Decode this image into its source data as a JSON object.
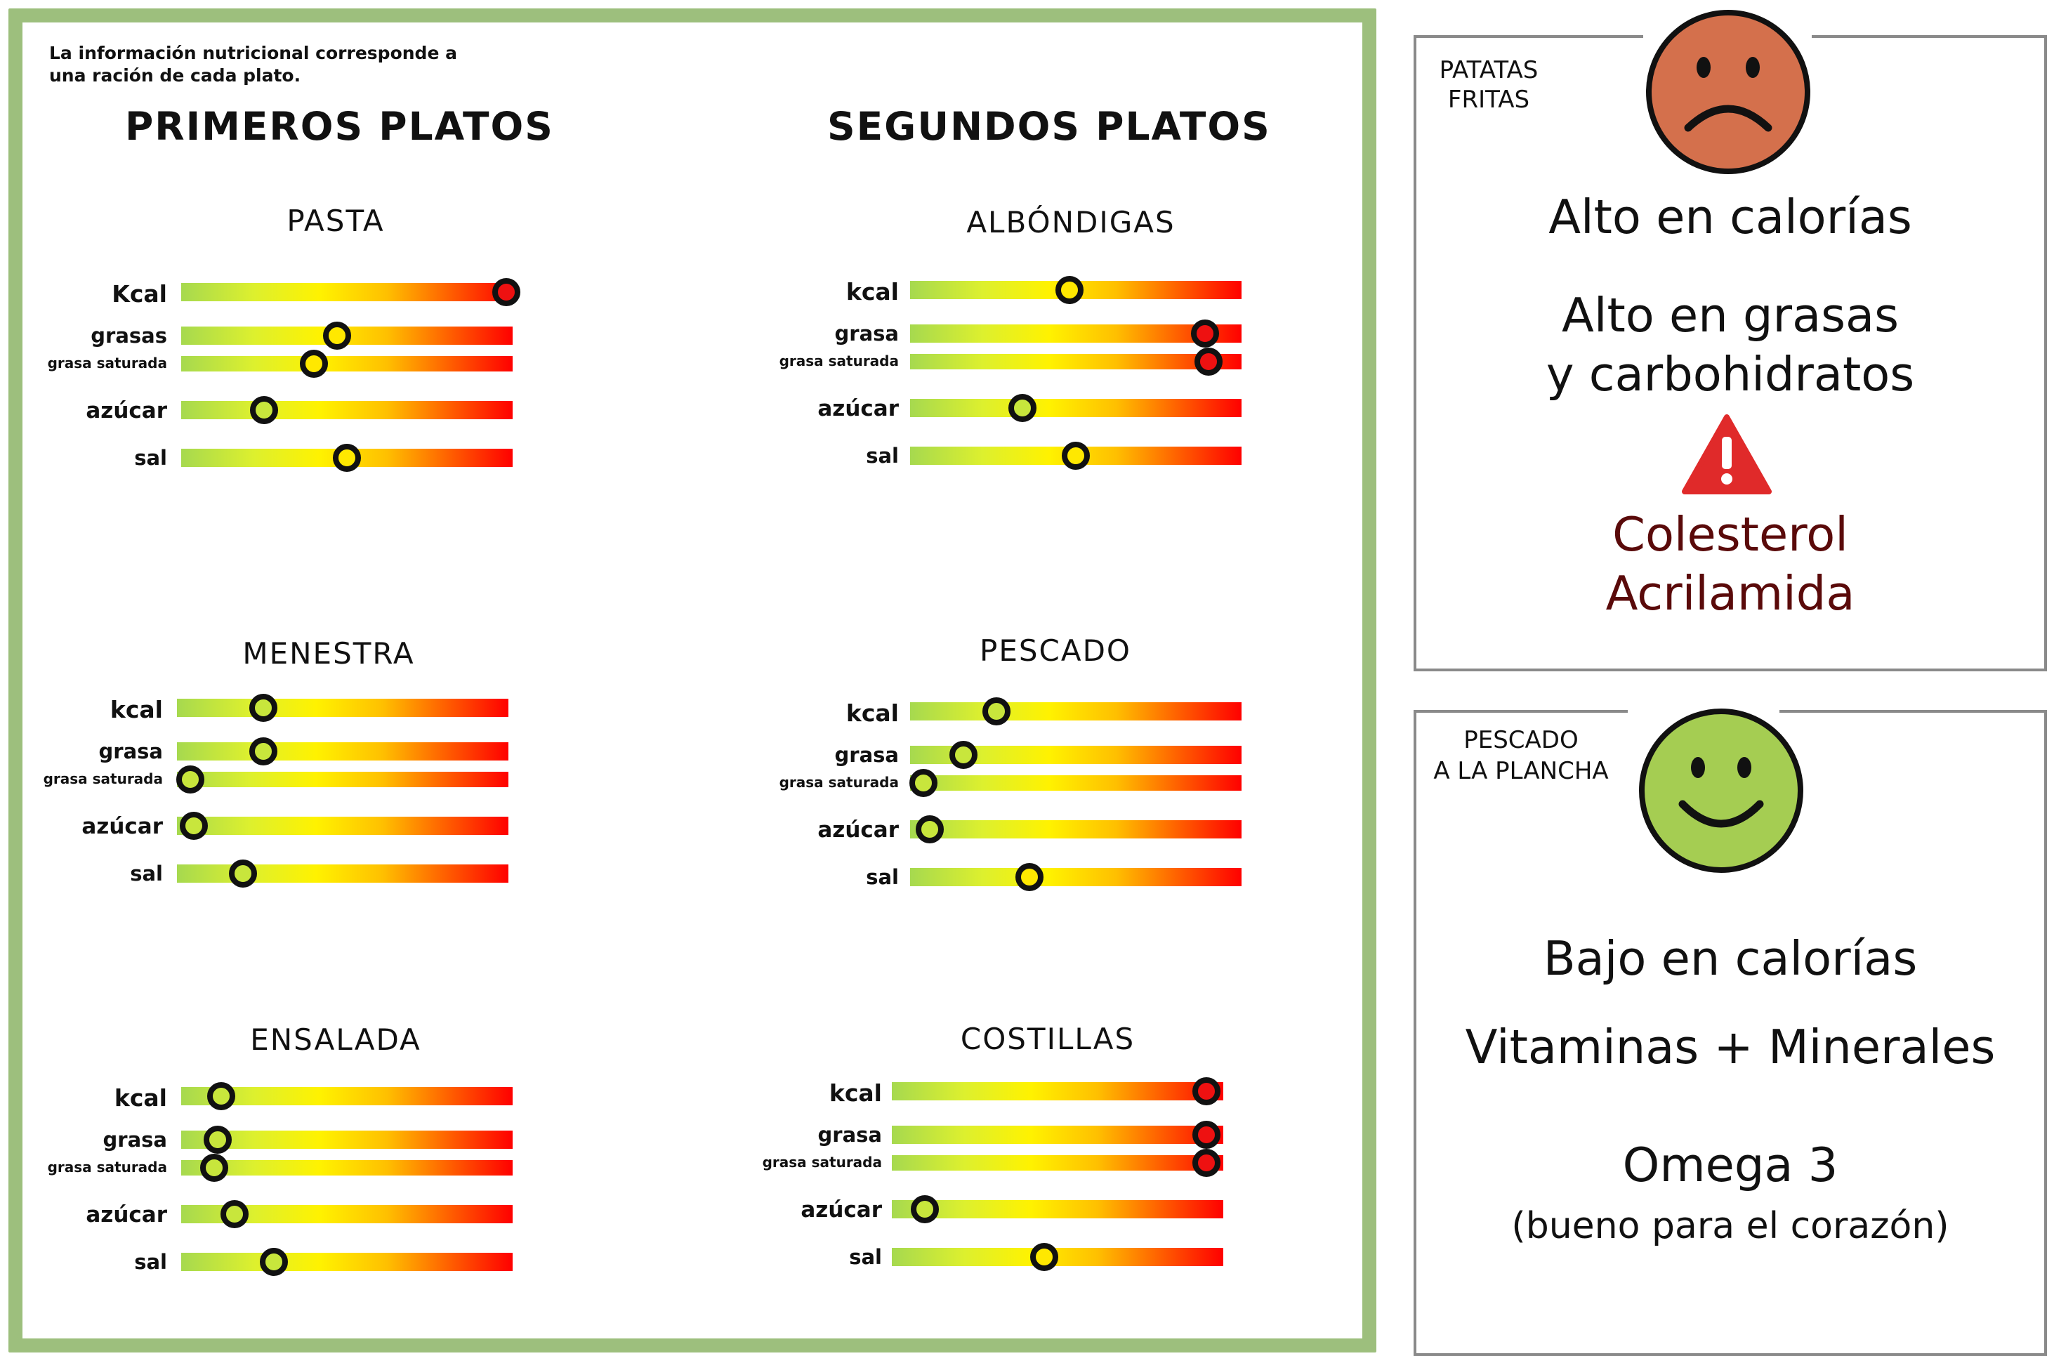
{
  "note": "La información nutricional corresponde a una ración de cada plato.",
  "columns": {
    "primeros": "PRIMEROS PLATOS",
    "segundos": "SEGUNDOS PLATOS"
  },
  "dishes": {
    "pasta": {
      "title": "PASTA",
      "labels": [
        "Kcal",
        "grasas",
        "grasa saturada",
        "azúcar",
        "sal"
      ],
      "levels": [
        0.98,
        0.47,
        0.4,
        0.25,
        0.5
      ]
    },
    "menestra": {
      "title": "MENESTRA",
      "labels": [
        "kcal",
        "grasa",
        "grasa saturada",
        "azúcar",
        "sal"
      ],
      "levels": [
        0.26,
        0.26,
        0.04,
        0.05,
        0.2
      ]
    },
    "ensalada": {
      "title": "ENSALADA",
      "labels": [
        "kcal",
        "grasa",
        "grasa saturada",
        "azúcar",
        "sal"
      ],
      "levels": [
        0.12,
        0.11,
        0.1,
        0.16,
        0.28
      ]
    },
    "albondigas": {
      "title": "ALBÓNDIGAS",
      "labels": [
        "kcal",
        "grasa",
        "grasa saturada",
        "azúcar",
        "sal"
      ],
      "levels": [
        0.48,
        0.89,
        0.9,
        0.34,
        0.5
      ]
    },
    "pescado": {
      "title": "PESCADO",
      "labels": [
        "kcal",
        "grasa",
        "grasa saturada",
        "azúcar",
        "sal"
      ],
      "levels": [
        0.26,
        0.16,
        0.04,
        0.06,
        0.36
      ]
    },
    "costillas": {
      "title": "COSTILLAS",
      "labels": [
        "kcal",
        "grasa",
        "grasa saturada",
        "azúcar",
        "sal"
      ],
      "levels": [
        0.95,
        0.95,
        0.95,
        0.1,
        0.46
      ]
    }
  },
  "panel_fries": {
    "tag": [
      "PATATAS",
      "FRITAS"
    ],
    "face": "sad-face-icon",
    "line1": "Alto en calorías",
    "line2": "Alto en grasas",
    "line3": "y carbohidratos",
    "warning_icon": "warning-triangle-icon",
    "line4": "Colesterol",
    "line5": "Acrilamida",
    "colors": {
      "face": "#d4704c",
      "warning": "#e02a2a",
      "text_warn": "#5a0a0a"
    }
  },
  "panel_fish": {
    "tag": [
      "PESCADO",
      "A LA PLANCHA"
    ],
    "face": "happy-face-icon",
    "line1": "Bajo en calorías",
    "line2": "Vitaminas + Minerales",
    "line3": "Omega 3",
    "line4": "(bueno para el corazón)",
    "colors": {
      "face": "#a5cd52"
    }
  }
}
